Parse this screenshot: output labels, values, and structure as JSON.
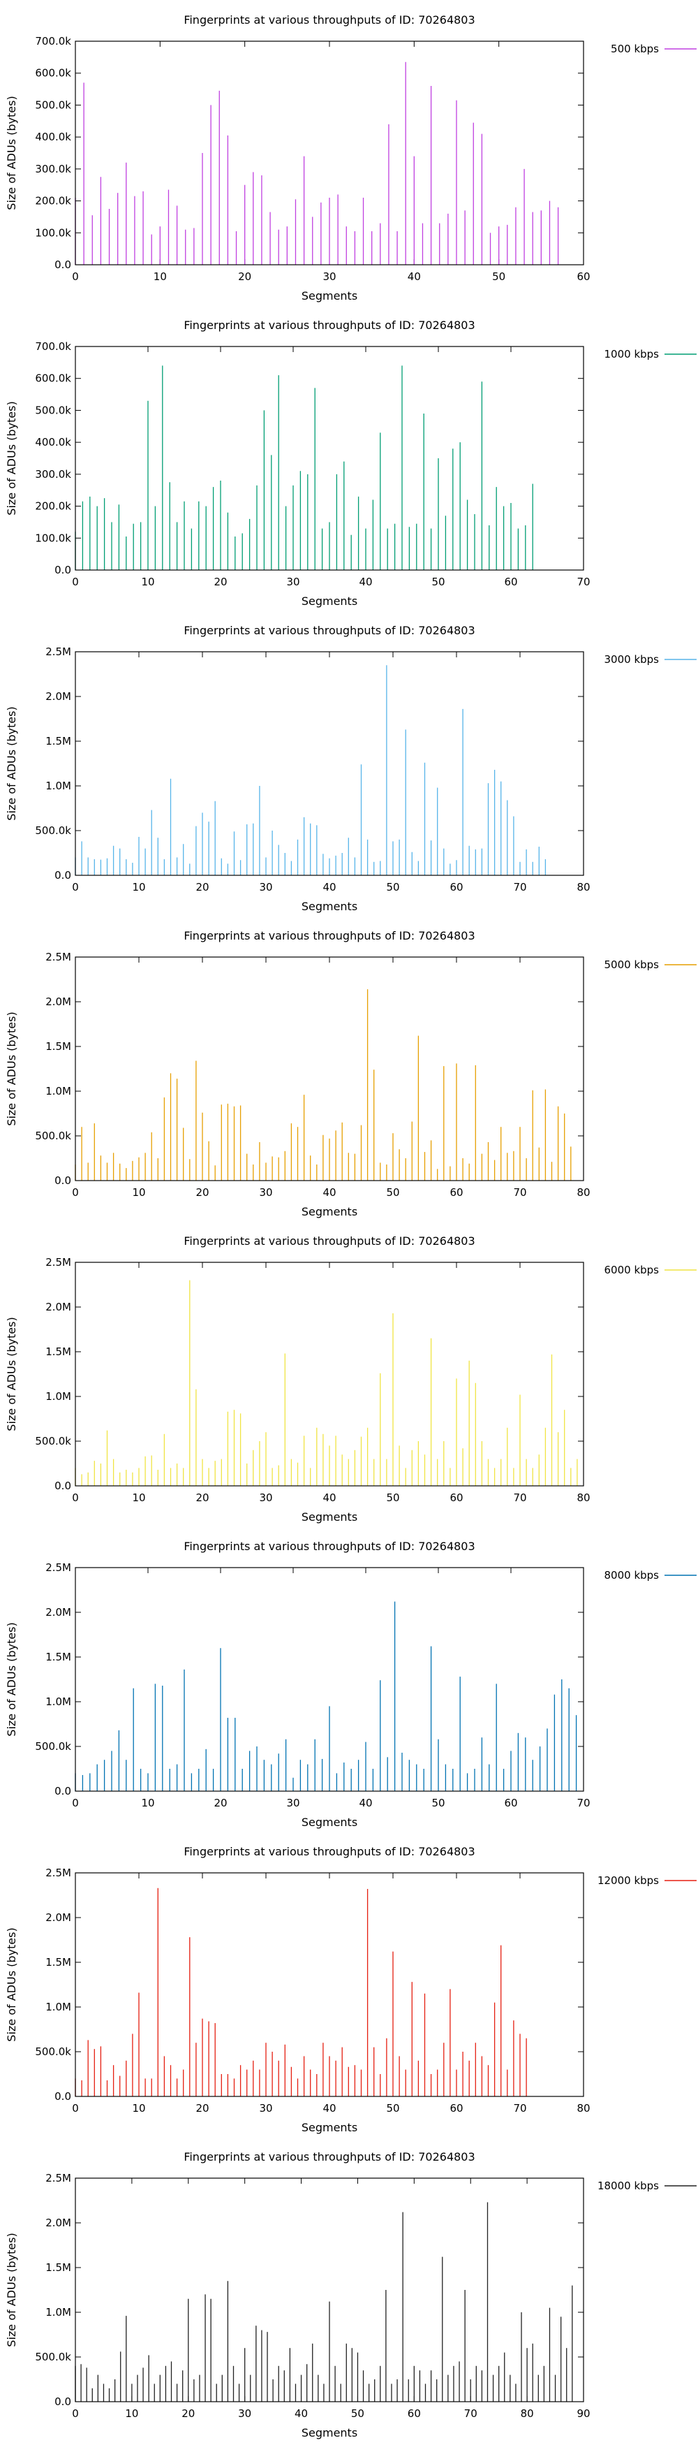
{
  "chart_data": [
    {
      "type": "bar",
      "title": "Fingerprints at various throughputs of ID: 70264803",
      "xlabel": "Segments",
      "ylabel": "Size of ADUs (bytes)",
      "xlim": [
        0,
        60
      ],
      "ylim": [
        0,
        700000
      ],
      "xticks": [
        0,
        10,
        20,
        30,
        40,
        50,
        60
      ],
      "yticks": [
        0,
        100000,
        200000,
        300000,
        400000,
        500000,
        600000,
        700000
      ],
      "ytick_labels": [
        "0.0",
        "100.0k",
        "200.0k",
        "300.0k",
        "400.0k",
        "500.0k",
        "600.0k",
        "700.0k"
      ],
      "legend_position": "top-right",
      "grid": false,
      "series": [
        {
          "name": "500 kbps",
          "color": "#c040e0",
          "values": [
            210000,
            570000,
            155000,
            275000,
            175000,
            225000,
            320000,
            215000,
            230000,
            95000,
            120000,
            235000,
            185000,
            110000,
            115000,
            350000,
            500000,
            545000,
            405000,
            105000,
            250000,
            290000,
            280000,
            165000,
            110000,
            120000,
            205000,
            340000,
            150000,
            195000,
            210000,
            220000,
            120000,
            105000,
            210000,
            105000,
            130000,
            440000,
            105000,
            635000,
            340000,
            130000,
            560000,
            130000,
            160000,
            515000,
            170000,
            445000,
            410000,
            100000,
            120000,
            125000,
            180000,
            300000,
            165000,
            170000,
            200000,
            180000
          ]
        }
      ]
    },
    {
      "type": "bar",
      "title": "Fingerprints at various throughputs of ID: 70264803",
      "xlabel": "Segments",
      "ylabel": "Size of ADUs (bytes)",
      "xlim": [
        0,
        70
      ],
      "ylim": [
        0,
        700000
      ],
      "xticks": [
        0,
        10,
        20,
        30,
        40,
        50,
        60,
        70
      ],
      "yticks": [
        0,
        100000,
        200000,
        300000,
        400000,
        500000,
        600000,
        700000
      ],
      "ytick_labels": [
        "0.0",
        "100.0k",
        "200.0k",
        "300.0k",
        "400.0k",
        "500.0k",
        "600.0k",
        "700.0k"
      ],
      "legend_position": "top-right",
      "grid": false,
      "series": [
        {
          "name": "1000 kbps",
          "color": "#009e73",
          "values": [
            120000,
            215000,
            230000,
            200000,
            225000,
            150000,
            205000,
            105000,
            145000,
            150000,
            530000,
            200000,
            640000,
            275000,
            150000,
            215000,
            130000,
            215000,
            200000,
            260000,
            280000,
            180000,
            105000,
            115000,
            160000,
            265000,
            500000,
            360000,
            610000,
            200000,
            265000,
            310000,
            300000,
            570000,
            130000,
            150000,
            300000,
            340000,
            110000,
            230000,
            130000,
            220000,
            430000,
            130000,
            145000,
            640000,
            135000,
            145000,
            490000,
            130000,
            350000,
            170000,
            380000,
            400000,
            220000,
            175000,
            590000,
            140000,
            260000,
            200000,
            210000,
            130000,
            140000,
            270000
          ]
        }
      ]
    },
    {
      "type": "bar",
      "title": "Fingerprints at various throughputs of ID: 70264803",
      "xlabel": "Segments",
      "ylabel": "Size of ADUs (bytes)",
      "xlim": [
        0,
        80
      ],
      "ylim": [
        0,
        2500000
      ],
      "xticks": [
        0,
        10,
        20,
        30,
        40,
        50,
        60,
        70,
        80
      ],
      "yticks": [
        0,
        500000,
        1000000,
        1500000,
        2000000,
        2500000
      ],
      "ytick_labels": [
        "0.0",
        "500.0k",
        "1.0M",
        "1.5M",
        "2.0M",
        "2.5M"
      ],
      "legend_position": "top-right",
      "grid": false,
      "series": [
        {
          "name": "3000 kbps",
          "color": "#56b4e9",
          "values": [
            200000,
            380000,
            200000,
            180000,
            175000,
            190000,
            330000,
            300000,
            180000,
            140000,
            430000,
            300000,
            730000,
            420000,
            180000,
            1080000,
            200000,
            350000,
            130000,
            550000,
            700000,
            600000,
            830000,
            190000,
            130000,
            490000,
            170000,
            570000,
            580000,
            1000000,
            200000,
            500000,
            340000,
            250000,
            160000,
            400000,
            650000,
            580000,
            560000,
            240000,
            190000,
            220000,
            250000,
            420000,
            200000,
            1240000,
            400000,
            150000,
            160000,
            2350000,
            380000,
            400000,
            1630000,
            260000,
            160000,
            1260000,
            390000,
            980000,
            300000,
            130000,
            170000,
            1860000,
            330000,
            290000,
            300000,
            1030000,
            1180000,
            1050000,
            840000,
            660000,
            150000,
            290000,
            150000,
            320000,
            180000
          ]
        }
      ]
    },
    {
      "type": "bar",
      "title": "Fingerprints at various throughputs of ID: 70264803",
      "xlabel": "Segments",
      "ylabel": "Size of ADUs (bytes)",
      "xlim": [
        0,
        80
      ],
      "ylim": [
        0,
        2500000
      ],
      "xticks": [
        0,
        10,
        20,
        30,
        40,
        50,
        60,
        70,
        80
      ],
      "yticks": [
        0,
        500000,
        1000000,
        1500000,
        2000000,
        2500000
      ],
      "ytick_labels": [
        "0.0",
        "500.0k",
        "1.0M",
        "1.5M",
        "2.0M",
        "2.5M"
      ],
      "legend_position": "top-right",
      "grid": false,
      "series": [
        {
          "name": "5000 kbps",
          "color": "#e69f00",
          "values": [
            180000,
            600000,
            200000,
            640000,
            280000,
            200000,
            310000,
            190000,
            140000,
            220000,
            260000,
            310000,
            540000,
            250000,
            930000,
            1200000,
            1140000,
            590000,
            240000,
            1340000,
            760000,
            440000,
            170000,
            850000,
            860000,
            830000,
            840000,
            300000,
            180000,
            430000,
            200000,
            270000,
            260000,
            330000,
            640000,
            600000,
            960000,
            280000,
            180000,
            510000,
            470000,
            560000,
            650000,
            310000,
            300000,
            620000,
            2140000,
            1240000,
            200000,
            180000,
            530000,
            350000,
            250000,
            660000,
            1620000,
            320000,
            450000,
            130000,
            1280000,
            160000,
            1310000,
            250000,
            190000,
            1290000,
            300000,
            430000,
            230000,
            600000,
            310000,
            330000,
            600000,
            250000,
            1010000,
            370000,
            1020000,
            210000,
            830000,
            750000,
            380000
          ]
        }
      ]
    },
    {
      "type": "bar",
      "title": "Fingerprints at various throughputs of ID: 70264803",
      "xlabel": "Segments",
      "ylabel": "Size of ADUs (bytes)",
      "xlim": [
        0,
        80
      ],
      "ylim": [
        0,
        2500000
      ],
      "xticks": [
        0,
        10,
        20,
        30,
        40,
        50,
        60,
        70,
        80
      ],
      "yticks": [
        0,
        500000,
        1000000,
        1500000,
        2000000,
        2500000
      ],
      "ytick_labels": [
        "0.0",
        "500.0k",
        "1.0M",
        "1.5M",
        "2.0M",
        "2.5M"
      ],
      "legend_position": "top-right",
      "grid": false,
      "series": [
        {
          "name": "6000 kbps",
          "color": "#f0e442",
          "values": [
            200000,
            130000,
            150000,
            280000,
            250000,
            620000,
            300000,
            150000,
            180000,
            150000,
            200000,
            330000,
            340000,
            180000,
            580000,
            200000,
            250000,
            200000,
            2300000,
            1080000,
            300000,
            200000,
            280000,
            300000,
            830000,
            850000,
            810000,
            250000,
            400000,
            500000,
            600000,
            200000,
            230000,
            1480000,
            300000,
            260000,
            560000,
            200000,
            650000,
            580000,
            450000,
            560000,
            350000,
            300000,
            400000,
            550000,
            650000,
            300000,
            1260000,
            300000,
            1930000,
            450000,
            200000,
            400000,
            500000,
            350000,
            1650000,
            300000,
            500000,
            200000,
            1200000,
            420000,
            1400000,
            1150000,
            500000,
            300000,
            200000,
            300000,
            650000,
            200000,
            1020000,
            300000,
            200000,
            350000,
            650000,
            1470000,
            600000,
            850000,
            200000,
            300000
          ]
        }
      ]
    },
    {
      "type": "bar",
      "title": "Fingerprints at various throughputs of ID: 70264803",
      "xlabel": "Segments",
      "ylabel": "Size of ADUs (bytes)",
      "xlim": [
        0,
        70
      ],
      "ylim": [
        0,
        2500000
      ],
      "xticks": [
        0,
        10,
        20,
        30,
        40,
        50,
        60,
        70
      ],
      "yticks": [
        0,
        500000,
        1000000,
        1500000,
        2000000,
        2500000
      ],
      "ytick_labels": [
        "0.0",
        "500.0k",
        "1.0M",
        "1.5M",
        "2.0M",
        "2.5M"
      ],
      "legend_position": "top-right",
      "grid": false,
      "series": [
        {
          "name": "8000 kbps",
          "color": "#0072b2",
          "values": [
            200000,
            180000,
            200000,
            300000,
            350000,
            450000,
            680000,
            350000,
            1150000,
            250000,
            200000,
            1200000,
            1180000,
            250000,
            300000,
            1360000,
            200000,
            250000,
            470000,
            250000,
            1600000,
            820000,
            820000,
            250000,
            450000,
            500000,
            350000,
            300000,
            420000,
            580000,
            150000,
            350000,
            300000,
            580000,
            360000,
            950000,
            200000,
            320000,
            250000,
            350000,
            550000,
            250000,
            1240000,
            380000,
            2120000,
            430000,
            350000,
            300000,
            250000,
            1620000,
            580000,
            300000,
            250000,
            1280000,
            200000,
            250000,
            600000,
            300000,
            1200000,
            250000,
            450000,
            650000,
            600000,
            350000,
            500000,
            700000,
            1080000,
            1250000,
            1150000,
            850000
          ]
        }
      ]
    },
    {
      "type": "bar",
      "title": "Fingerprints at various throughputs of ID: 70264803",
      "xlabel": "Segments",
      "ylabel": "Size of ADUs (bytes)",
      "xlim": [
        0,
        80
      ],
      "ylim": [
        0,
        2500000
      ],
      "xticks": [
        0,
        10,
        20,
        30,
        40,
        50,
        60,
        70,
        80
      ],
      "yticks": [
        0,
        500000,
        1000000,
        1500000,
        2000000,
        2500000
      ],
      "ytick_labels": [
        "0.0",
        "500.0k",
        "1.0M",
        "1.5M",
        "2.0M",
        "2.5M"
      ],
      "legend_position": "top-right",
      "grid": false,
      "series": [
        {
          "name": "12000 kbps",
          "color": "#e51e10",
          "values": [
            200000,
            180000,
            630000,
            530000,
            560000,
            180000,
            350000,
            230000,
            400000,
            700000,
            1160000,
            200000,
            200000,
            2330000,
            450000,
            350000,
            200000,
            300000,
            1780000,
            600000,
            870000,
            840000,
            820000,
            250000,
            250000,
            200000,
            350000,
            300000,
            400000,
            300000,
            600000,
            500000,
            400000,
            580000,
            330000,
            200000,
            450000,
            300000,
            250000,
            600000,
            450000,
            400000,
            550000,
            330000,
            350000,
            300000,
            2320000,
            550000,
            250000,
            650000,
            1620000,
            450000,
            300000,
            1280000,
            400000,
            1150000,
            250000,
            300000,
            600000,
            1200000,
            300000,
            500000,
            400000,
            600000,
            450000,
            350000,
            1050000,
            1690000,
            300000,
            850000,
            700000,
            650000
          ]
        }
      ]
    },
    {
      "type": "bar",
      "title": "Fingerprints at various throughputs of ID: 70264803",
      "xlabel": "Segments",
      "ylabel": "Size of ADUs (bytes)",
      "xlim": [
        0,
        90
      ],
      "ylim": [
        0,
        2500000
      ],
      "xticks": [
        0,
        10,
        20,
        30,
        40,
        50,
        60,
        70,
        80,
        90
      ],
      "yticks": [
        0,
        500000,
        1000000,
        1500000,
        2000000,
        2500000
      ],
      "ytick_labels": [
        "0.0",
        "500.0k",
        "1.0M",
        "1.5M",
        "2.0M",
        "2.5M"
      ],
      "legend_position": "top-right",
      "grid": false,
      "series": [
        {
          "name": "18000 kbps",
          "color": "#222222",
          "values": [
            400000,
            420000,
            380000,
            150000,
            300000,
            200000,
            150000,
            250000,
            560000,
            960000,
            200000,
            300000,
            380000,
            520000,
            200000,
            300000,
            400000,
            450000,
            200000,
            350000,
            1150000,
            250000,
            300000,
            1200000,
            1150000,
            200000,
            300000,
            1350000,
            400000,
            200000,
            600000,
            300000,
            850000,
            800000,
            780000,
            250000,
            400000,
            350000,
            600000,
            200000,
            300000,
            420000,
            650000,
            300000,
            200000,
            1120000,
            400000,
            200000,
            650000,
            600000,
            550000,
            350000,
            200000,
            250000,
            400000,
            1250000,
            200000,
            250000,
            2120000,
            250000,
            400000,
            350000,
            200000,
            350000,
            250000,
            1620000,
            300000,
            400000,
            450000,
            1250000,
            250000,
            400000,
            350000,
            2230000,
            300000,
            400000,
            550000,
            300000,
            200000,
            1000000,
            600000,
            650000,
            300000,
            400000,
            1050000,
            300000,
            950000,
            600000,
            1300000
          ]
        }
      ]
    }
  ]
}
